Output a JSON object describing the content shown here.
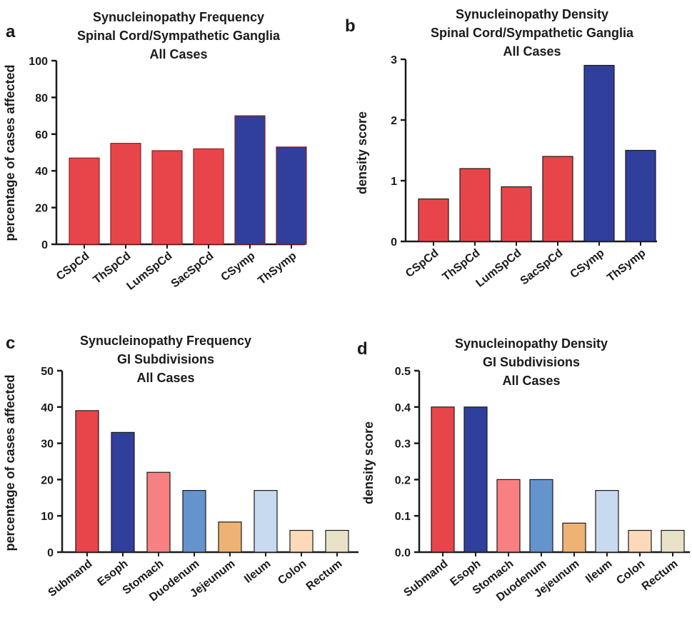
{
  "colors": {
    "red": "#e8454a",
    "blue": "#2f3f9b",
    "pink": "#f98082",
    "steel_blue": "#6593cc",
    "tan": "#edb274",
    "light_blue": "#c8daef",
    "peach": "#fcd9b8",
    "beige": "#e8e3c8"
  },
  "chart_data": [
    {
      "panel": "a",
      "type": "bar",
      "title": [
        "Synucleinopathy Frequency",
        "Spinal Cord/Sympathetic Ganglia",
        "All Cases"
      ],
      "xlabel": "",
      "ylabel": "percentage of cases affected",
      "categories": [
        "CSpCd",
        "ThSpCd",
        "LumSpCd",
        "SacSpCd",
        "CSymp",
        "ThSymp"
      ],
      "values": [
        47,
        55,
        51,
        52,
        70,
        53
      ],
      "bar_colors": [
        "#e8454a",
        "#e8454a",
        "#e8454a",
        "#e8454a",
        "#2f3f9b",
        "#2f3f9b"
      ],
      "ylim": [
        0,
        100
      ],
      "yticks": [
        0,
        20,
        40,
        60,
        80,
        100
      ],
      "ytick_labels": [
        "0",
        "20",
        "40",
        "60",
        "80",
        "100"
      ],
      "grid": false,
      "legend": "none"
    },
    {
      "panel": "b",
      "type": "bar",
      "title": [
        "Synucleinopathy Density",
        "Spinal Cord/Sympathetic Ganglia",
        "All Cases"
      ],
      "xlabel": "",
      "ylabel": "density score",
      "categories": [
        "CSpCd",
        "ThSpCd",
        "LumSpCd",
        "SacSpCd",
        "CSymp",
        "ThSymp"
      ],
      "values": [
        0.7,
        1.2,
        0.9,
        1.4,
        2.9,
        1.5
      ],
      "bar_colors": [
        "#e8454a",
        "#e8454a",
        "#e8454a",
        "#e8454a",
        "#2f3f9b",
        "#2f3f9b"
      ],
      "ylim": [
        0,
        3
      ],
      "yticks": [
        0,
        1,
        2,
        3
      ],
      "ytick_labels": [
        "0",
        "1",
        "2",
        "3"
      ],
      "grid": false,
      "legend": "none"
    },
    {
      "panel": "c",
      "type": "bar",
      "title": [
        "Synucleinopathy Frequency",
        "GI Subdivisions",
        "All Cases"
      ],
      "xlabel": "",
      "ylabel": "percentage of cases affected",
      "categories": [
        "Submand",
        "Esoph",
        "Stomach",
        "Duodenum",
        "Jejeunum",
        "Ileum",
        "Colon",
        "Rectum"
      ],
      "values": [
        39,
        33,
        22,
        17,
        8.3,
        17,
        6,
        6
      ],
      "bar_colors": [
        "#e8454a",
        "#2f3f9b",
        "#f98082",
        "#6593cc",
        "#edb274",
        "#c8daef",
        "#fcd9b8",
        "#e8e3c8"
      ],
      "ylim": [
        0,
        50
      ],
      "yticks": [
        0,
        10,
        20,
        30,
        40,
        50
      ],
      "ytick_labels": [
        "0",
        "10",
        "20",
        "30",
        "40",
        "50"
      ],
      "grid": false,
      "legend": "none"
    },
    {
      "panel": "d",
      "type": "bar",
      "title": [
        "Synucleinopathy Density",
        "GI Subdivisions",
        "All Cases"
      ],
      "xlabel": "",
      "ylabel": "density score",
      "categories": [
        "Submand",
        "Esoph",
        "Stomach",
        "Duodenum",
        "Jejeunum",
        "Ileum",
        "Colon",
        "Rectum"
      ],
      "values": [
        0.4,
        0.4,
        0.2,
        0.2,
        0.08,
        0.17,
        0.06,
        0.06
      ],
      "bar_colors": [
        "#e8454a",
        "#2f3f9b",
        "#f98082",
        "#6593cc",
        "#edb274",
        "#c8daef",
        "#fcd9b8",
        "#e8e3c8"
      ],
      "ylim": [
        0,
        0.5
      ],
      "yticks": [
        0,
        0.1,
        0.2,
        0.3,
        0.4,
        0.5
      ],
      "ytick_labels": [
        "0.0",
        "0.1",
        "0.2",
        "0.3",
        "0.4",
        "0.5"
      ],
      "grid": false,
      "legend": "none"
    }
  ]
}
